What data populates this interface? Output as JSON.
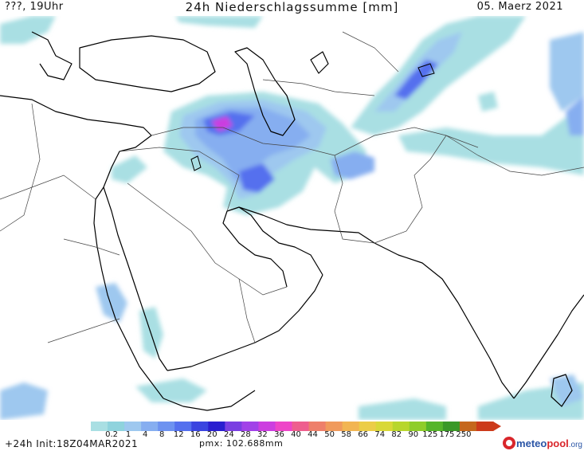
{
  "header": {
    "left": "???, 19Uhr",
    "title": "24h Niederschlagssumme [mm]",
    "right": "05. Maerz 2021"
  },
  "scale": {
    "ticks": [
      "0.2",
      "1",
      "4",
      "8",
      "12",
      "16",
      "20",
      "24",
      "28",
      "32",
      "36",
      "40",
      "44",
      "50",
      "58",
      "66",
      "74",
      "82",
      "90",
      "125",
      "175",
      "250"
    ],
    "colors": [
      "#a9dfe3",
      "#8fd3dd",
      "#9ec8ef",
      "#86aef0",
      "#6d92f0",
      "#5470ee",
      "#3a45e0",
      "#2a1fd0",
      "#7a3fe2",
      "#a142e8",
      "#cc3ee0",
      "#ee45c8",
      "#ee5e8e",
      "#ee7f6a",
      "#f09a5c",
      "#f2b552",
      "#eccd47",
      "#d9d838",
      "#b8d62d",
      "#8fcd2a",
      "#55b52a",
      "#3a9828",
      "#c5671c",
      "#cc3a1a"
    ]
  },
  "footer": {
    "init": "+24h Init:18Z04MAR2021",
    "pmx": "pmx: 102.688mm"
  },
  "logo": {
    "part1": "meteo",
    "part2": "pool",
    "part3": ".org"
  }
}
